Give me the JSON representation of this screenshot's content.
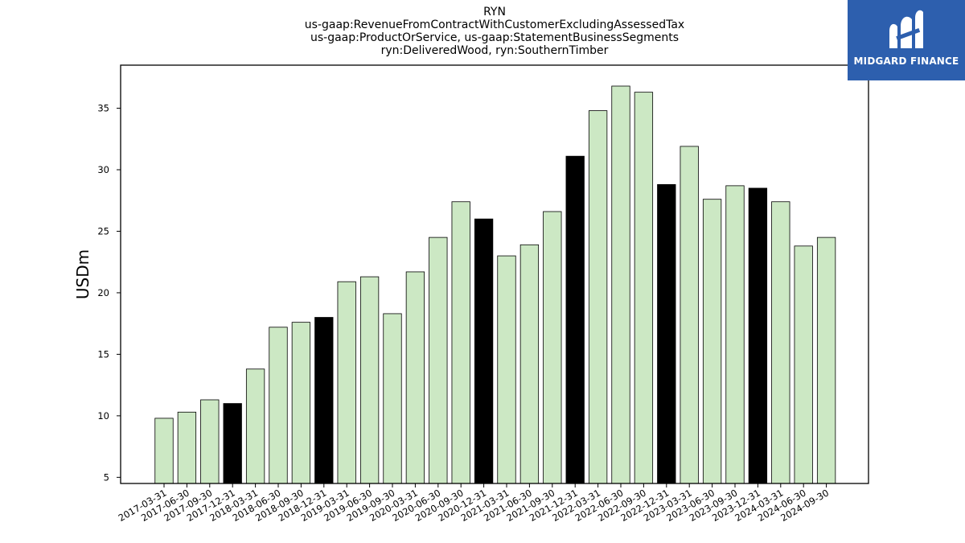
{
  "chart_data": {
    "type": "bar",
    "title_lines": [
      "RYN",
      "us-gaap:RevenueFromContractWithCustomerExcludingAssessedTax",
      "us-gaap:ProductOrService, us-gaap:StatementBusinessSegments",
      "ryn:DeliveredWood, ryn:SouthernTimber"
    ],
    "xlabel": "",
    "ylabel": "USDm",
    "ylim": [
      4.5,
      38.5
    ],
    "yticks": [
      5,
      10,
      15,
      20,
      25,
      30,
      35
    ],
    "grid": false,
    "categories": [
      "2017-03-31",
      "2017-06-30",
      "2017-09-30",
      "2017-12-31",
      "2018-03-31",
      "2018-06-30",
      "2018-09-30",
      "2018-12-31",
      "2019-03-31",
      "2019-06-30",
      "2019-09-30",
      "2020-03-31",
      "2020-06-30",
      "2020-09-30",
      "2020-12-31",
      "2021-03-31",
      "2021-06-30",
      "2021-09-30",
      "2021-12-31",
      "2022-03-31",
      "2022-06-30",
      "2022-09-30",
      "2022-12-31",
      "2023-03-31",
      "2023-06-30",
      "2023-09-30",
      "2023-12-31",
      "2024-03-31",
      "2024-06-30",
      "2024-09-30"
    ],
    "values": [
      9.8,
      10.3,
      11.3,
      11.0,
      13.8,
      17.2,
      17.6,
      18.0,
      20.9,
      21.3,
      18.3,
      21.7,
      24.5,
      27.4,
      26.0,
      23.0,
      23.9,
      26.6,
      31.1,
      34.8,
      36.8,
      36.3,
      28.8,
      31.9,
      27.6,
      28.7,
      28.5,
      27.4,
      23.8,
      24.5
    ],
    "year_end": [
      false,
      false,
      false,
      true,
      false,
      false,
      false,
      true,
      false,
      false,
      false,
      false,
      false,
      false,
      true,
      false,
      false,
      false,
      true,
      false,
      false,
      false,
      true,
      false,
      false,
      false,
      true,
      false,
      false,
      false
    ],
    "colors": {
      "quarter": "#cce8c4",
      "year_end": "#000000",
      "edge": "#000000"
    }
  },
  "logo": {
    "text": "MIDGARD FINANCE",
    "background": "#2d5fae"
  }
}
